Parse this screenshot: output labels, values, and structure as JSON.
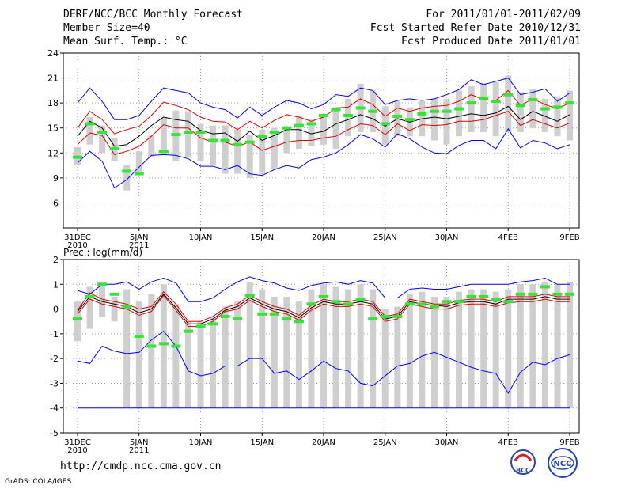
{
  "header": {
    "title": "DERF/NCC/BCC Monthly Forecast",
    "member_size": "Member Size=40",
    "variable": "Mean Surf. Temp.: °C",
    "period": "For 2011/01/01-2011/02/09",
    "started": "Fcst Started Refer Date 2010/12/31",
    "produced": "Fcst Produced Date 2011/01/01"
  },
  "footer": {
    "url": "http://cmdp.ncc.cma.gov.cn",
    "credit": "GrADS: COLA/IGES"
  },
  "logos": {
    "bcc": "BCC",
    "ncc": "NCC"
  },
  "colors": {
    "max_line": "#0000ff",
    "min_line": "#0000ff",
    "pct_line": "#e00000",
    "mean_line": "#000000",
    "obs_marker": "#33e633",
    "box": "#cfcfcf",
    "grid": "#888888"
  },
  "chart_data": [
    {
      "type": "line",
      "title": "Mean Surf. Temp.: °C",
      "ylim": [
        3,
        24
      ],
      "yticks": [
        6,
        9,
        12,
        15,
        18,
        21,
        24
      ],
      "x_day_range": [
        0,
        40
      ],
      "xticks": [
        {
          "day": 0,
          "label": "31DEC",
          "sub": "2010"
        },
        {
          "day": 5,
          "label": "5JAN",
          "sub": "2011"
        },
        {
          "day": 10,
          "label": "10JAN",
          "sub": ""
        },
        {
          "day": 15,
          "label": "15JAN",
          "sub": ""
        },
        {
          "day": 20,
          "label": "20JAN",
          "sub": ""
        },
        {
          "day": 25,
          "label": "25JAN",
          "sub": ""
        },
        {
          "day": 30,
          "label": "30JAN",
          "sub": ""
        },
        {
          "day": 35,
          "label": "4FEB",
          "sub": ""
        },
        {
          "day": 40,
          "label": "9FEB",
          "sub": ""
        }
      ],
      "series": [
        {
          "name": "max",
          "values": [
            18,
            19.8,
            18.2,
            16,
            16,
            16.5,
            18.2,
            19.8,
            19.5,
            19.2,
            18,
            17.5,
            17.2,
            16.2,
            17.5,
            16.5,
            17.5,
            18.3,
            18,
            17.3,
            17.8,
            19,
            18.8,
            19.8,
            19.5,
            17.8,
            18.3,
            18.5,
            18.3,
            18.5,
            19,
            19.6,
            20.8,
            20.2,
            20.6,
            21,
            19,
            19.3,
            19.7,
            18.2,
            19.2
          ]
        },
        {
          "name": "p90",
          "values": [
            15,
            17,
            16,
            14.3,
            14.8,
            15.2,
            16.5,
            18.1,
            17.7,
            17.2,
            16.3,
            15.8,
            15.7,
            14.8,
            15.8,
            15,
            15.9,
            16.6,
            16.3,
            15.8,
            16.3,
            17.4,
            17.5,
            18.5,
            17.8,
            16.4,
            17.4,
            17,
            17.4,
            17.6,
            17.7,
            18.2,
            19,
            18.4,
            18.3,
            19.5,
            17.7,
            18.5,
            17.8,
            17.3,
            18
          ]
        },
        {
          "name": "mean",
          "values": [
            14,
            15.8,
            15,
            12.8,
            13,
            14,
            15.3,
            16.3,
            16,
            15.8,
            14.7,
            14.3,
            14.4,
            13.4,
            14.6,
            13.5,
            14.1,
            14.8,
            14.8,
            14.3,
            14.6,
            15.5,
            16,
            16.6,
            16.1,
            15.2,
            16.1,
            15.7,
            16.1,
            16.3,
            16.1,
            16.4,
            16.7,
            16.5,
            16.8,
            17.6,
            16,
            17,
            16.4,
            15.8,
            16.6
          ]
        },
        {
          "name": "p10",
          "values": [
            13,
            14.4,
            14.1,
            11.8,
            12.2,
            12.8,
            14,
            15.4,
            15,
            15,
            13.8,
            13.3,
            13.3,
            12.8,
            13.3,
            12.3,
            12.8,
            13.3,
            13.5,
            13.5,
            13.8,
            14,
            14.8,
            15.5,
            15.3,
            14.2,
            15.5,
            14.7,
            15.4,
            15.3,
            15.4,
            15.8,
            15.8,
            16,
            16.5,
            17,
            15.3,
            16,
            15.5,
            15,
            15.6
          ]
        },
        {
          "name": "min",
          "values": [
            10.8,
            12.2,
            11,
            7.8,
            8.8,
            10.3,
            11.7,
            11.8,
            11.7,
            11.3,
            10.4,
            10.4,
            10,
            10.5,
            9.5,
            9.3,
            10,
            10.5,
            10.2,
            11.2,
            11.5,
            12,
            13,
            14.2,
            13.7,
            12.7,
            14.3,
            13.7,
            12.7,
            12,
            11.9,
            12.9,
            13.5,
            13.5,
            12.5,
            14.9,
            12.6,
            13.5,
            13.2,
            12.5,
            13
          ]
        }
      ],
      "boxes": [
        [
          10.5,
          12.7
        ],
        [
          13,
          16.3
        ],
        [
          12,
          15.3
        ],
        [
          11,
          13.8
        ],
        [
          7.5,
          10.5
        ],
        [
          9.5,
          12.2
        ],
        [
          11.5,
          14.1
        ],
        [
          11.8,
          16.3
        ],
        [
          11,
          17.1
        ],
        [
          11.5,
          17
        ],
        [
          11,
          15.5
        ],
        [
          10.5,
          15.3
        ],
        [
          9.5,
          15.3
        ],
        [
          9.5,
          14.8
        ],
        [
          9,
          14.2
        ],
        [
          9.5,
          14.8
        ],
        [
          10,
          15
        ],
        [
          12,
          15.2
        ],
        [
          12.5,
          16.5
        ],
        [
          12.8,
          16
        ],
        [
          13,
          16.5
        ],
        [
          12.5,
          17.5
        ],
        [
          14,
          18.5
        ],
        [
          14.5,
          20.3
        ],
        [
          14.5,
          19.5
        ],
        [
          13,
          17.6
        ],
        [
          14,
          18.2
        ],
        [
          14,
          17.5
        ],
        [
          14,
          18.2
        ],
        [
          13.5,
          18.5
        ],
        [
          13,
          18.5
        ],
        [
          14,
          19.5
        ],
        [
          14.5,
          20
        ],
        [
          14.5,
          20.4
        ],
        [
          14,
          20.5
        ],
        [
          14.5,
          21.3
        ],
        [
          14.5,
          19.3
        ],
        [
          15,
          19.7
        ],
        [
          14.5,
          18.5
        ],
        [
          14,
          18.8
        ],
        [
          13.5,
          19.5
        ]
      ],
      "obs": [
        11.5,
        15.5,
        14.5,
        12.5,
        9.8,
        9.5,
        null,
        12.2,
        14.2,
        14.5,
        14.5,
        13.5,
        13.5,
        13,
        13.3,
        14,
        14.5,
        15,
        15.3,
        15.5,
        16.5,
        17.2,
        16.5,
        17.4,
        17,
        15.5,
        16.4,
        16,
        16.7,
        17,
        17,
        17.3,
        18,
        18.6,
        18.2,
        19,
        17.7,
        18.4,
        17.3,
        17.5,
        18
      ]
    },
    {
      "type": "line",
      "title": "Prec.: log(mm/d)",
      "ylim": [
        -5,
        2
      ],
      "yticks": [
        -5,
        -4,
        -3,
        -2,
        -1,
        0,
        1,
        2
      ],
      "x_day_range": [
        0,
        40
      ],
      "xticks": [
        {
          "day": 0,
          "label": "31DEC",
          "sub": "2010"
        },
        {
          "day": 5,
          "label": "5JAN",
          "sub": "2011"
        },
        {
          "day": 10,
          "label": "10JAN",
          "sub": ""
        },
        {
          "day": 15,
          "label": "15JAN",
          "sub": ""
        },
        {
          "day": 20,
          "label": "20JAN",
          "sub": ""
        },
        {
          "day": 25,
          "label": "25JAN",
          "sub": ""
        },
        {
          "day": 30,
          "label": "30JAN",
          "sub": ""
        },
        {
          "day": 35,
          "label": "4FEB",
          "sub": ""
        },
        {
          "day": 40,
          "label": "9FEB",
          "sub": ""
        }
      ],
      "series": [
        {
          "name": "max",
          "values": [
            0.75,
            0.6,
            1,
            1,
            1.1,
            0.8,
            1.1,
            1.25,
            1.05,
            0.3,
            0.3,
            0.45,
            0.8,
            1.1,
            1.3,
            1.15,
            1.05,
            0.85,
            0.75,
            0.95,
            1.05,
            1.1,
            1,
            1.15,
            1.05,
            0.45,
            0.45,
            0.8,
            0.85,
            0.8,
            0.8,
            0.9,
            1,
            1,
            1,
            1,
            1.1,
            1.15,
            1.25,
            1,
            1
          ]
        },
        {
          "name": "p90",
          "values": [
            -0.05,
            0.65,
            0.4,
            0.3,
            0.2,
            0,
            0.1,
            0.7,
            0.2,
            -0.5,
            -0.5,
            -0.3,
            0.05,
            0.2,
            0.55,
            0.3,
            0.1,
            0,
            -0.25,
            0.15,
            0.4,
            0.3,
            0.3,
            0.4,
            0.3,
            -0.3,
            -0.2,
            0.4,
            0.3,
            0.2,
            0.2,
            0.35,
            0.4,
            0.4,
            0.3,
            0.5,
            0.5,
            0.5,
            0.6,
            0.5,
            0.5
          ]
        },
        {
          "name": "mean",
          "values": [
            -0.1,
            0.5,
            0.3,
            0.2,
            0.1,
            -0.15,
            0,
            0.6,
            0.05,
            -0.6,
            -0.6,
            -0.4,
            -0.05,
            0.1,
            0.45,
            0.2,
            0,
            -0.1,
            -0.35,
            0.05,
            0.3,
            0.2,
            0.2,
            0.3,
            0.2,
            -0.4,
            -0.3,
            0.3,
            0.2,
            0.15,
            0.1,
            0.25,
            0.3,
            0.3,
            0.2,
            0.4,
            0.4,
            0.4,
            0.5,
            0.4,
            0.4
          ]
        },
        {
          "name": "p10",
          "values": [
            -0.2,
            0.4,
            0.2,
            0.1,
            0,
            -0.25,
            -0.1,
            0.55,
            -0.05,
            -0.7,
            -0.7,
            -0.5,
            -0.1,
            0,
            0.35,
            0.1,
            -0.1,
            -0.2,
            -0.45,
            -0.05,
            0.2,
            0.1,
            0.1,
            0.2,
            0.1,
            -0.5,
            -0.4,
            0.2,
            0.1,
            0,
            0,
            0.15,
            0.2,
            0.2,
            0.1,
            0.25,
            0.3,
            0.3,
            0.4,
            0.3,
            0.3
          ]
        },
        {
          "name": "min",
          "values": [
            -2.1,
            -2.2,
            -1.5,
            -1.7,
            -1.8,
            -1.75,
            -1.25,
            -0.9,
            -1.5,
            -2.5,
            -2.7,
            -2.6,
            -2.3,
            -2.3,
            -2,
            -2,
            -2.6,
            -2.5,
            -2.85,
            -2.5,
            -2.1,
            -2.4,
            -2.5,
            -3,
            -3.1,
            -2.7,
            -2.3,
            -2.2,
            -1.9,
            -1.75,
            -1.95,
            -2.15,
            -2.35,
            -2.5,
            -2.6,
            -3.4,
            -2.55,
            -2.15,
            -2.25,
            -2,
            -1.85
          ]
        }
      ],
      "boxes": [
        [
          -1.3,
          0.3
        ],
        [
          -0.8,
          0.9
        ],
        [
          -0.3,
          1
        ],
        [
          -0.5,
          0.5
        ],
        [
          -4,
          0.8
        ],
        [
          -4,
          0.3
        ],
        [
          -4,
          0.6
        ],
        [
          -4,
          1
        ],
        [
          -4,
          0.2
        ],
        [
          -4,
          -0.5
        ],
        [
          -4,
          -0.5
        ],
        [
          -4,
          -0.3
        ],
        [
          -4,
          0.1
        ],
        [
          -4,
          0.3
        ],
        [
          -4,
          1.1
        ],
        [
          -4,
          0.8
        ],
        [
          -4,
          0.5
        ],
        [
          -4,
          0.5
        ],
        [
          -4,
          0.3
        ],
        [
          -4,
          0.8
        ],
        [
          -4,
          1
        ],
        [
          -4,
          0.9
        ],
        [
          -4,
          0.8
        ],
        [
          -4,
          1
        ],
        [
          -4,
          0.8
        ],
        [
          -4,
          0
        ],
        [
          -4,
          0.1
        ],
        [
          -4,
          0.6
        ],
        [
          -4,
          0.7
        ],
        [
          -4,
          0.5
        ],
        [
          -4,
          0.5
        ],
        [
          -4,
          0.7
        ],
        [
          -4,
          0.8
        ],
        [
          -4,
          0.8
        ],
        [
          -4,
          0.7
        ],
        [
          -4,
          0.8
        ],
        [
          -4,
          1
        ],
        [
          -4,
          1
        ],
        [
          -4,
          1.1
        ],
        [
          -4,
          1
        ],
        [
          -4,
          1.1
        ]
      ],
      "floor": -4,
      "obs": [
        -0.4,
        0.5,
        1,
        0.6,
        0.1,
        -1.1,
        -1.5,
        -1.4,
        -1.5,
        -0.9,
        -0.7,
        -0.6,
        -0.3,
        -0.4,
        0.55,
        -0.2,
        -0.2,
        -0.4,
        -0.5,
        0.2,
        0.5,
        0.3,
        0.2,
        0.4,
        -0.4,
        -0.3,
        -0.3,
        0.2,
        0.2,
        0.1,
        0.3,
        0.3,
        0.5,
        0.5,
        0.4,
        0.3,
        0.6,
        0.6,
        0.9,
        0.6,
        0.6
      ]
    }
  ]
}
